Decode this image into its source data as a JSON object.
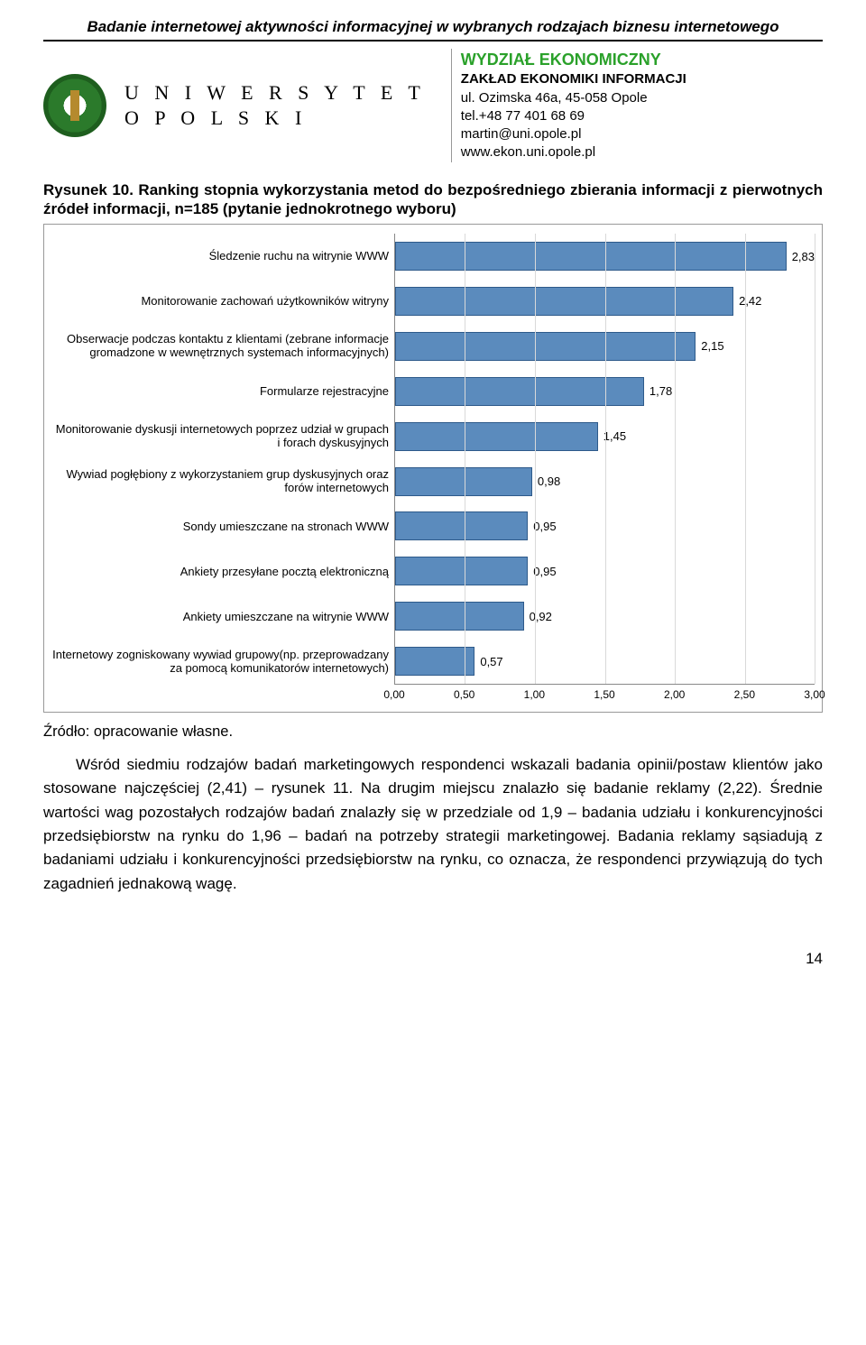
{
  "page_title_header": "Badanie internetowej aktywności informacyjnej w wybranych rodzajach biznesu internetowego",
  "institution": {
    "uni_line1": "U N I W E R S Y T E T",
    "uni_line2": "O  P  O  L  S  K  I",
    "dept_title": "WYDZIAŁ EKONOMICZNY",
    "dept_sub": "ZAKŁAD EKONOMIKI INFORMACJI",
    "addr1": "ul. Ozimska 46a, 45-058 Opole",
    "addr2": "tel.+48 77 401 68 69",
    "addr3": "martin@uni.opole.pl",
    "addr4": "www.ekon.uni.opole.pl"
  },
  "figure": {
    "caption": "Rysunek 10. Ranking stopnia wykorzystania metod do bezpośredniego zbierania informacji z pierwotnych źródeł informacji, n=185 (pytanie jednokrotnego wyboru)"
  },
  "chart": {
    "type": "bar-horizontal",
    "bar_color": "#5b8bbd",
    "bar_border": "#2e5a8a",
    "grid_color": "#d9d9d9",
    "xmin": 0.0,
    "xmax": 3.0,
    "xtick_step": 0.5,
    "xticks": [
      "0,00",
      "0,50",
      "1,00",
      "1,50",
      "2,00",
      "2,50",
      "3,00"
    ],
    "categories": [
      "Śledzenie ruchu na witrynie WWW",
      "Monitorowanie zachowań użytkowników witryny",
      "Obserwacje podczas kontaktu z klientami (zebrane informacje gromadzone w wewnętrznych systemach informacyjnych)",
      "Formularze rejestracyjne",
      "Monitorowanie dyskusji internetowych poprzez udział w grupach i forach dyskusyjnych",
      "Wywiad pogłębiony z wykorzystaniem grup dyskusyjnych oraz forów internetowych",
      "Sondy umieszczane na stronach WWW",
      "Ankiety przesyłane pocztą elektroniczną",
      "Ankiety umieszczane na witrynie WWW",
      "Internetowy zogniskowany wywiad grupowy(np. przeprowadzany za pomocą komunikatorów internetowych)"
    ],
    "values": [
      2.83,
      2.42,
      2.15,
      1.78,
      1.45,
      0.98,
      0.95,
      0.95,
      0.92,
      0.57
    ],
    "value_labels": [
      "2,83",
      "2,42",
      "2,15",
      "1,78",
      "1,45",
      "0,98",
      "0,95",
      "0,95",
      "0,92",
      "0,57"
    ]
  },
  "source_line": "Źródło: opracowanie własne.",
  "body_paragraph": "Wśród siedmiu rodzajów badań marketingowych respondenci wskazali badania opinii/postaw klientów jako stosowane najczęściej (2,41) – rysunek 11. Na drugim miejscu znalazło się badanie reklamy (2,22). Średnie wartości wag pozostałych rodzajów badań znalazły się w przedziale od 1,9 – badania udziału i konkurencyjności przedsiębiorstw na rynku do 1,96 – badań na potrzeby strategii marketingowej. Badania reklamy sąsiadują z badaniami udziału i konkurencyjności przedsiębiorstw na rynku, co oznacza, że respondenci przywiązują do tych zagadnień jednakową wagę.",
  "page_number": "14"
}
